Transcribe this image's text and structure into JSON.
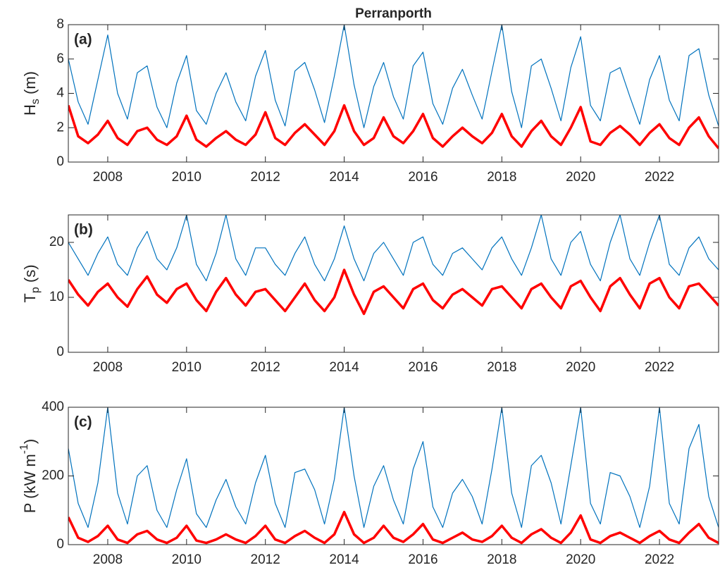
{
  "chart_data": [
    {
      "type": "line",
      "title": "Perranporth",
      "panel_label": "(a)",
      "ylabel": [
        {
          "text": "H"
        },
        {
          "text": "s",
          "shift": "sub"
        },
        {
          "text": " (m)"
        }
      ],
      "x": [
        2007,
        2007.25,
        2007.5,
        2007.75,
        2008,
        2008.25,
        2008.5,
        2008.75,
        2009,
        2009.25,
        2009.5,
        2009.75,
        2010,
        2010.25,
        2010.5,
        2010.75,
        2011,
        2011.25,
        2011.5,
        2011.75,
        2012,
        2012.25,
        2012.5,
        2012.75,
        2013,
        2013.25,
        2013.5,
        2013.75,
        2014,
        2014.25,
        2014.5,
        2014.75,
        2015,
        2015.25,
        2015.5,
        2015.75,
        2016,
        2016.25,
        2016.5,
        2016.75,
        2017,
        2017.25,
        2017.5,
        2017.75,
        2018,
        2018.25,
        2018.5,
        2018.75,
        2019,
        2019.25,
        2019.5,
        2019.75,
        2020,
        2020.25,
        2020.5,
        2020.75,
        2021,
        2021.25,
        2021.5,
        2021.75,
        2022,
        2022.25,
        2022.5,
        2022.75,
        2023,
        2023.25,
        2023.5
      ],
      "xlim": [
        2007,
        2023.5
      ],
      "xticks": [
        2008,
        2010,
        2012,
        2014,
        2016,
        2018,
        2020,
        2022
      ],
      "ylim": [
        0,
        8
      ],
      "yticks": [
        0,
        2,
        4,
        6,
        8
      ],
      "series": [
        {
          "color": "#0072bd",
          "values": [
            6.0,
            3.5,
            2.2,
            4.8,
            7.4,
            4.0,
            2.5,
            5.2,
            5.6,
            3.2,
            2.0,
            4.6,
            6.2,
            3.0,
            2.2,
            4.0,
            5.2,
            3.5,
            2.4,
            5.0,
            6.5,
            3.6,
            2.1,
            5.3,
            5.8,
            4.2,
            2.3,
            5.0,
            8.0,
            4.5,
            2.0,
            4.4,
            5.8,
            3.8,
            2.5,
            5.6,
            6.4,
            3.4,
            2.2,
            4.3,
            5.4,
            3.9,
            2.5,
            5.3,
            8.0,
            4.1,
            2.0,
            5.6,
            6.0,
            4.3,
            2.4,
            5.5,
            7.3,
            3.3,
            2.4,
            5.2,
            5.5,
            3.8,
            2.2,
            4.8,
            6.2,
            3.6,
            2.4,
            6.2,
            6.6,
            3.9,
            2.1
          ]
        },
        {
          "color": "#ff0000",
          "values": [
            3.3,
            1.5,
            1.1,
            1.6,
            2.4,
            1.4,
            1.0,
            1.8,
            2.0,
            1.3,
            1.0,
            1.5,
            2.7,
            1.3,
            0.9,
            1.4,
            1.8,
            1.3,
            1.0,
            1.6,
            2.9,
            1.4,
            1.0,
            1.7,
            2.2,
            1.6,
            1.0,
            1.8,
            3.3,
            1.8,
            1.0,
            1.4,
            2.6,
            1.5,
            1.1,
            1.8,
            2.8,
            1.4,
            0.9,
            1.5,
            2.0,
            1.5,
            1.1,
            1.7,
            2.8,
            1.5,
            0.9,
            1.8,
            2.4,
            1.5,
            1.0,
            2.0,
            3.2,
            1.2,
            1.0,
            1.7,
            2.1,
            1.6,
            1.0,
            1.7,
            2.2,
            1.4,
            1.0,
            2.0,
            2.6,
            1.5,
            0.8
          ]
        }
      ]
    },
    {
      "type": "line",
      "panel_label": "(b)",
      "ylabel": [
        {
          "text": "T"
        },
        {
          "text": "p",
          "shift": "sub"
        },
        {
          "text": " (s)"
        }
      ],
      "x": [
        2007,
        2007.25,
        2007.5,
        2007.75,
        2008,
        2008.25,
        2008.5,
        2008.75,
        2009,
        2009.25,
        2009.5,
        2009.75,
        2010,
        2010.25,
        2010.5,
        2010.75,
        2011,
        2011.25,
        2011.5,
        2011.75,
        2012,
        2012.25,
        2012.5,
        2012.75,
        2013,
        2013.25,
        2013.5,
        2013.75,
        2014,
        2014.25,
        2014.5,
        2014.75,
        2015,
        2015.25,
        2015.5,
        2015.75,
        2016,
        2016.25,
        2016.5,
        2016.75,
        2017,
        2017.25,
        2017.5,
        2017.75,
        2018,
        2018.25,
        2018.5,
        2018.75,
        2019,
        2019.25,
        2019.5,
        2019.75,
        2020,
        2020.25,
        2020.5,
        2020.75,
        2021,
        2021.25,
        2021.5,
        2021.75,
        2022,
        2022.25,
        2022.5,
        2022.75,
        2023,
        2023.25,
        2023.5
      ],
      "xlim": [
        2007,
        2023.5
      ],
      "xticks": [
        2008,
        2010,
        2012,
        2014,
        2016,
        2018,
        2020,
        2022
      ],
      "ylim": [
        0,
        25
      ],
      "yticks": [
        0,
        10,
        20
      ],
      "series": [
        {
          "color": "#0072bd",
          "values": [
            20,
            17,
            14,
            18,
            21,
            16,
            14,
            19,
            22,
            17,
            15,
            19,
            25,
            16,
            13,
            18,
            25,
            17,
            14,
            19,
            19,
            16,
            14,
            18,
            21,
            16,
            13,
            17,
            23,
            17,
            13,
            18,
            20,
            17,
            14,
            20,
            21,
            16,
            14,
            18,
            19,
            17,
            15,
            19,
            21,
            17,
            14,
            19,
            25,
            17,
            14,
            20,
            22,
            16,
            13,
            20,
            25,
            17,
            14,
            20,
            25,
            16,
            14,
            19,
            21,
            17,
            15
          ]
        },
        {
          "color": "#ff0000",
          "values": [
            13.2,
            10.5,
            8.5,
            11.0,
            12.5,
            10.0,
            8.3,
            11.5,
            13.8,
            10.5,
            9.0,
            11.5,
            12.5,
            9.5,
            7.5,
            11.0,
            13.5,
            10.5,
            8.5,
            11.0,
            11.5,
            9.5,
            7.5,
            10.0,
            12.5,
            9.5,
            7.5,
            10.0,
            15.0,
            10.5,
            7.0,
            11.0,
            12.0,
            10.0,
            8.0,
            11.5,
            12.5,
            9.5,
            8.0,
            10.5,
            11.5,
            10.0,
            8.5,
            11.5,
            12.0,
            10.0,
            8.0,
            11.5,
            12.5,
            10.0,
            8.0,
            12.0,
            13.0,
            10.0,
            7.5,
            12.0,
            13.5,
            10.5,
            8.0,
            12.5,
            13.5,
            10.0,
            8.0,
            12.0,
            12.5,
            10.5,
            8.5
          ]
        }
      ]
    },
    {
      "type": "line",
      "panel_label": "(c)",
      "ylabel": [
        {
          "text": "P (kW m"
        },
        {
          "text": "-1",
          "shift": "super"
        },
        {
          "text": ")"
        }
      ],
      "x": [
        2007,
        2007.25,
        2007.5,
        2007.75,
        2008,
        2008.25,
        2008.5,
        2008.75,
        2009,
        2009.25,
        2009.5,
        2009.75,
        2010,
        2010.25,
        2010.5,
        2010.75,
        2011,
        2011.25,
        2011.5,
        2011.75,
        2012,
        2012.25,
        2012.5,
        2012.75,
        2013,
        2013.25,
        2013.5,
        2013.75,
        2014,
        2014.25,
        2014.5,
        2014.75,
        2015,
        2015.25,
        2015.5,
        2015.75,
        2016,
        2016.25,
        2016.5,
        2016.75,
        2017,
        2017.25,
        2017.5,
        2017.75,
        2018,
        2018.25,
        2018.5,
        2018.75,
        2019,
        2019.25,
        2019.5,
        2019.75,
        2020,
        2020.25,
        2020.5,
        2020.75,
        2021,
        2021.25,
        2021.5,
        2021.75,
        2022,
        2022.25,
        2022.5,
        2022.75,
        2023,
        2023.25,
        2023.5
      ],
      "xlim": [
        2007,
        2023.5
      ],
      "xticks": [
        2008,
        2010,
        2012,
        2014,
        2016,
        2018,
        2020,
        2022
      ],
      "ylim": [
        0,
        400
      ],
      "yticks": [
        0,
        200,
        400
      ],
      "series": [
        {
          "color": "#0072bd",
          "values": [
            280,
            120,
            50,
            180,
            400,
            150,
            60,
            200,
            230,
            100,
            50,
            160,
            250,
            90,
            50,
            130,
            190,
            110,
            60,
            180,
            260,
            120,
            50,
            210,
            220,
            160,
            60,
            190,
            400,
            200,
            50,
            170,
            230,
            130,
            60,
            220,
            300,
            110,
            50,
            150,
            190,
            140,
            60,
            220,
            400,
            150,
            50,
            230,
            260,
            180,
            60,
            230,
            400,
            120,
            60,
            210,
            200,
            140,
            50,
            170,
            400,
            120,
            60,
            280,
            350,
            140,
            50
          ]
        },
        {
          "color": "#ff0000",
          "values": [
            80,
            20,
            8,
            25,
            55,
            15,
            5,
            30,
            40,
            15,
            5,
            20,
            55,
            12,
            5,
            15,
            30,
            15,
            5,
            25,
            55,
            15,
            5,
            25,
            40,
            20,
            5,
            30,
            95,
            30,
            5,
            20,
            55,
            20,
            8,
            30,
            60,
            15,
            5,
            20,
            35,
            15,
            8,
            25,
            55,
            20,
            5,
            30,
            45,
            20,
            5,
            35,
            85,
            15,
            5,
            25,
            35,
            20,
            5,
            25,
            40,
            15,
            5,
            35,
            60,
            20,
            5
          ]
        }
      ]
    }
  ]
}
